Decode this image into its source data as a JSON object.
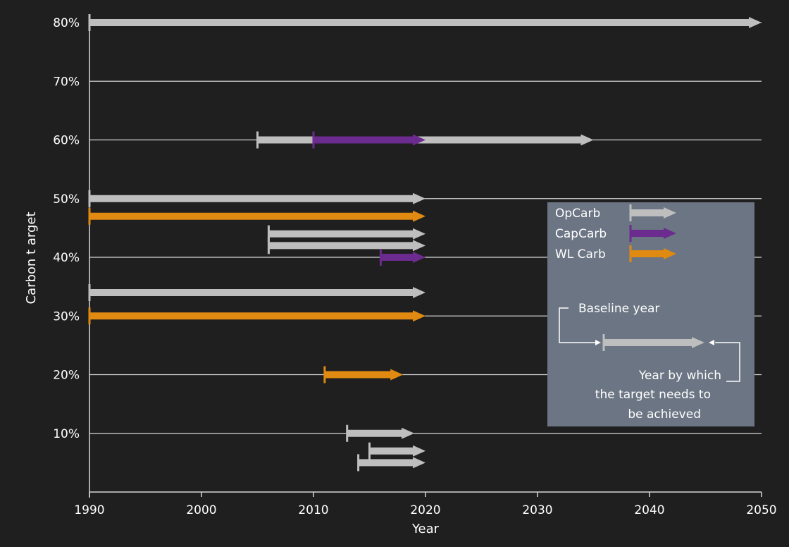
{
  "chart_data": {
    "type": "range-arrow",
    "title": "",
    "xlabel": "Year",
    "ylabel": "Carbon t arget",
    "xlim": [
      1990,
      2050
    ],
    "ylim": [
      0,
      80
    ],
    "x_ticks": [
      1990,
      2000,
      2010,
      2020,
      2030,
      2040,
      2050
    ],
    "y_ticks": [
      "10%",
      "20%",
      "30%",
      "40%",
      "50%",
      "60%",
      "70%",
      "80%"
    ],
    "y_tick_values": [
      10,
      20,
      30,
      40,
      50,
      60,
      70,
      80
    ],
    "grid": true,
    "legend_position": "right-middle",
    "colors": {
      "background": "#1f1f1f",
      "grid": "#d6d6d6",
      "OpCarb": "#bebebe",
      "CapCarb": "#6c2b8f",
      "WL Carb": "#e08a12",
      "legend_box": "#6b7583"
    },
    "series": [
      {
        "name": "OpCarb",
        "color": "#bebebe"
      },
      {
        "name": "CapCarb",
        "color": "#6c2b8f"
      },
      {
        "name": "WL Carb",
        "color": "#e08a12"
      }
    ],
    "targets": [
      {
        "series": "OpCarb",
        "target": 80,
        "baseline": 1990,
        "end": 2050
      },
      {
        "series": "OpCarb",
        "target": 60,
        "baseline": 2005,
        "end": 2035
      },
      {
        "series": "CapCarb",
        "target": 60,
        "baseline": 2010,
        "end": 2020
      },
      {
        "series": "OpCarb",
        "target": 50,
        "baseline": 1990,
        "end": 2020
      },
      {
        "series": "WL Carb",
        "target": 47,
        "baseline": 1990,
        "end": 2020
      },
      {
        "series": "OpCarb",
        "target": 44,
        "baseline": 2006,
        "end": 2020
      },
      {
        "series": "OpCarb",
        "target": 42,
        "baseline": 2006,
        "end": 2020
      },
      {
        "series": "CapCarb",
        "target": 40,
        "baseline": 2016,
        "end": 2020
      },
      {
        "series": "OpCarb",
        "target": 34,
        "baseline": 1990,
        "end": 2020
      },
      {
        "series": "WL Carb",
        "target": 30,
        "baseline": 1990,
        "end": 2020
      },
      {
        "series": "WL Carb",
        "target": 20,
        "baseline": 2011,
        "end": 2018
      },
      {
        "series": "OpCarb",
        "target": 10,
        "baseline": 2013,
        "end": 2019
      },
      {
        "series": "OpCarb",
        "target": 7,
        "baseline": 2015,
        "end": 2020
      },
      {
        "series": "OpCarb",
        "target": 5,
        "baseline": 2014,
        "end": 2020
      }
    ],
    "legend": {
      "baseline_label": "Baseline year",
      "endyear_lines": [
        "Year by which",
        "the target needs to",
        "be achieved"
      ]
    }
  }
}
